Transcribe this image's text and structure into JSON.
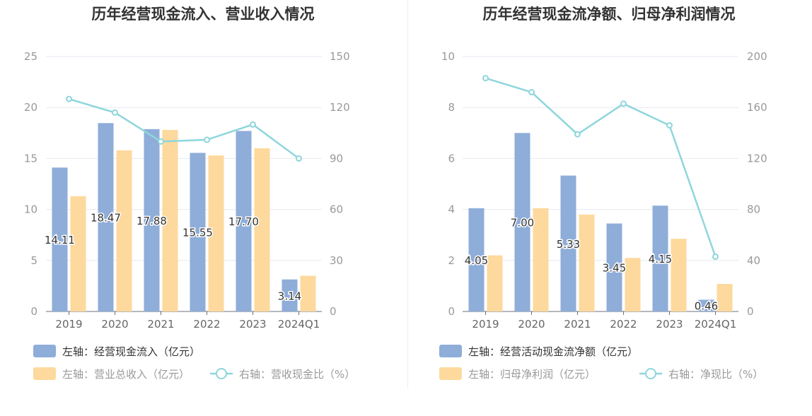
{
  "chart_data": [
    {
      "type": "bar",
      "title": "历年经营现金流入、营业收入情况",
      "categories": [
        "2019",
        "2020",
        "2021",
        "2022",
        "2023",
        "2024Q1"
      ],
      "left_axis": {
        "min": 0,
        "max": 25,
        "ticks": [
          "0",
          "5",
          "10",
          "15",
          "20",
          "25"
        ]
      },
      "right_axis": {
        "min": 0,
        "max": 150,
        "ticks": [
          "0",
          "30",
          "60",
          "90",
          "120",
          "150"
        ]
      },
      "series": [
        {
          "name": "左轴：经营现金流入（亿元）",
          "type": "bar",
          "axis": "left",
          "color": "#8eadd9",
          "values": [
            14.11,
            18.47,
            17.88,
            15.55,
            17.7,
            3.14
          ],
          "labels": [
            "14.11",
            "18.47",
            "17.88",
            "15.55",
            "17.70",
            "3.14"
          ]
        },
        {
          "name": "左轴：营业总收入（亿元）",
          "type": "bar",
          "axis": "left",
          "color": "#fdd99d",
          "values": [
            11.3,
            15.8,
            17.8,
            15.3,
            16.0,
            3.5
          ]
        },
        {
          "name": "右轴：营收现金比（%）",
          "type": "line",
          "axis": "right",
          "color": "#8ed6dc",
          "values": [
            125,
            117,
            100,
            101,
            110,
            90
          ]
        }
      ],
      "grid": true,
      "legend": "bottom"
    },
    {
      "type": "bar",
      "title": "历年经营现金流净额、归母净利润情况",
      "categories": [
        "2019",
        "2020",
        "2021",
        "2022",
        "2023",
        "2024Q1"
      ],
      "left_axis": {
        "min": 0,
        "max": 10,
        "ticks": [
          "0",
          "2",
          "4",
          "6",
          "8",
          "10"
        ]
      },
      "right_axis": {
        "min": 0,
        "max": 200,
        "ticks": [
          "0",
          "40",
          "80",
          "120",
          "160",
          "200"
        ]
      },
      "series": [
        {
          "name": "左轴：经营活动现金流净额（亿元）",
          "type": "bar",
          "axis": "left",
          "color": "#8eadd9",
          "values": [
            4.05,
            7.0,
            5.33,
            3.45,
            4.15,
            0.46
          ],
          "labels": [
            "4.05",
            "7.00",
            "5.33",
            "3.45",
            "4.15",
            "0.46"
          ]
        },
        {
          "name": "左轴：归母净利润（亿元）",
          "type": "bar",
          "axis": "left",
          "color": "#fdd99d",
          "values": [
            2.2,
            4.05,
            3.8,
            2.1,
            2.85,
            1.08
          ]
        },
        {
          "name": "右轴：净现比（%）",
          "type": "line",
          "axis": "right",
          "color": "#8ed6dc",
          "values": [
            183,
            172,
            139,
            163,
            146,
            43
          ]
        }
      ],
      "grid": true,
      "legend": "bottom"
    }
  ]
}
